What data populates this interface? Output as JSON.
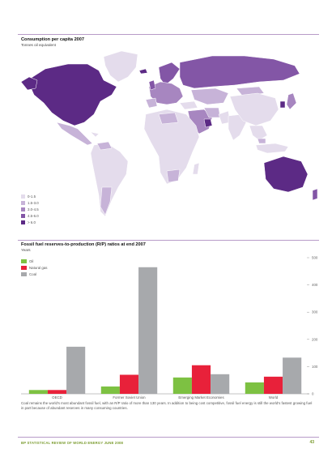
{
  "map": {
    "title": "Consumption per capita 2007",
    "subtitle": "Tonnes oil equivalent",
    "legend": [
      {
        "label": "0-1.5",
        "color": "#e4dcec"
      },
      {
        "label": "1.5-3.0",
        "color": "#c7b3d8"
      },
      {
        "label": "3.0-4.5",
        "color": "#a786c0"
      },
      {
        "label": "4.5-6.0",
        "color": "#8356a6"
      },
      {
        "label": "> 6.0",
        "color": "#5c2a85"
      }
    ],
    "colors": {
      "ocean": "#ffffff",
      "light": "#e4dcec",
      "mid_light": "#c7b3d8",
      "mid": "#a786c0",
      "mid_dark": "#8356a6",
      "dark": "#5c2a85"
    }
  },
  "chart_data": {
    "type": "bar",
    "title": "Fossil fuel reserves-to-production (R/P) ratios at end 2007",
    "subtitle": "Years",
    "categories": [
      "OECD",
      "Former Soviet Union",
      "Emerging Market Economies",
      "World"
    ],
    "series": [
      {
        "name": "Oil",
        "color": "#7dc142",
        "values": [
          14,
          27,
          60,
          42
        ]
      },
      {
        "name": "Natural gas",
        "color": "#e8213a",
        "values": [
          14,
          70,
          105,
          63
        ]
      },
      {
        "name": "Coal",
        "color": "#a7a9ac",
        "values": [
          173,
          465,
          72,
          133
        ]
      }
    ],
    "ylim": [
      0,
      500
    ],
    "yticks": [
      0,
      100,
      200,
      300,
      400,
      500
    ],
    "grid": false,
    "legend_placement": "top-left"
  },
  "footnote": "Coal remains the world's most abundant fossil fuel, with an R/P ratio of more than 130 years. In addition to being cost competitive, fossil fuel energy is still the world's fastest growing fuel in part because of abundant reserves in many consuming countries.",
  "footer": {
    "publication": "BP STATISTICAL REVIEW OF WORLD ENERGY JUNE 2008",
    "page_number": "43"
  }
}
